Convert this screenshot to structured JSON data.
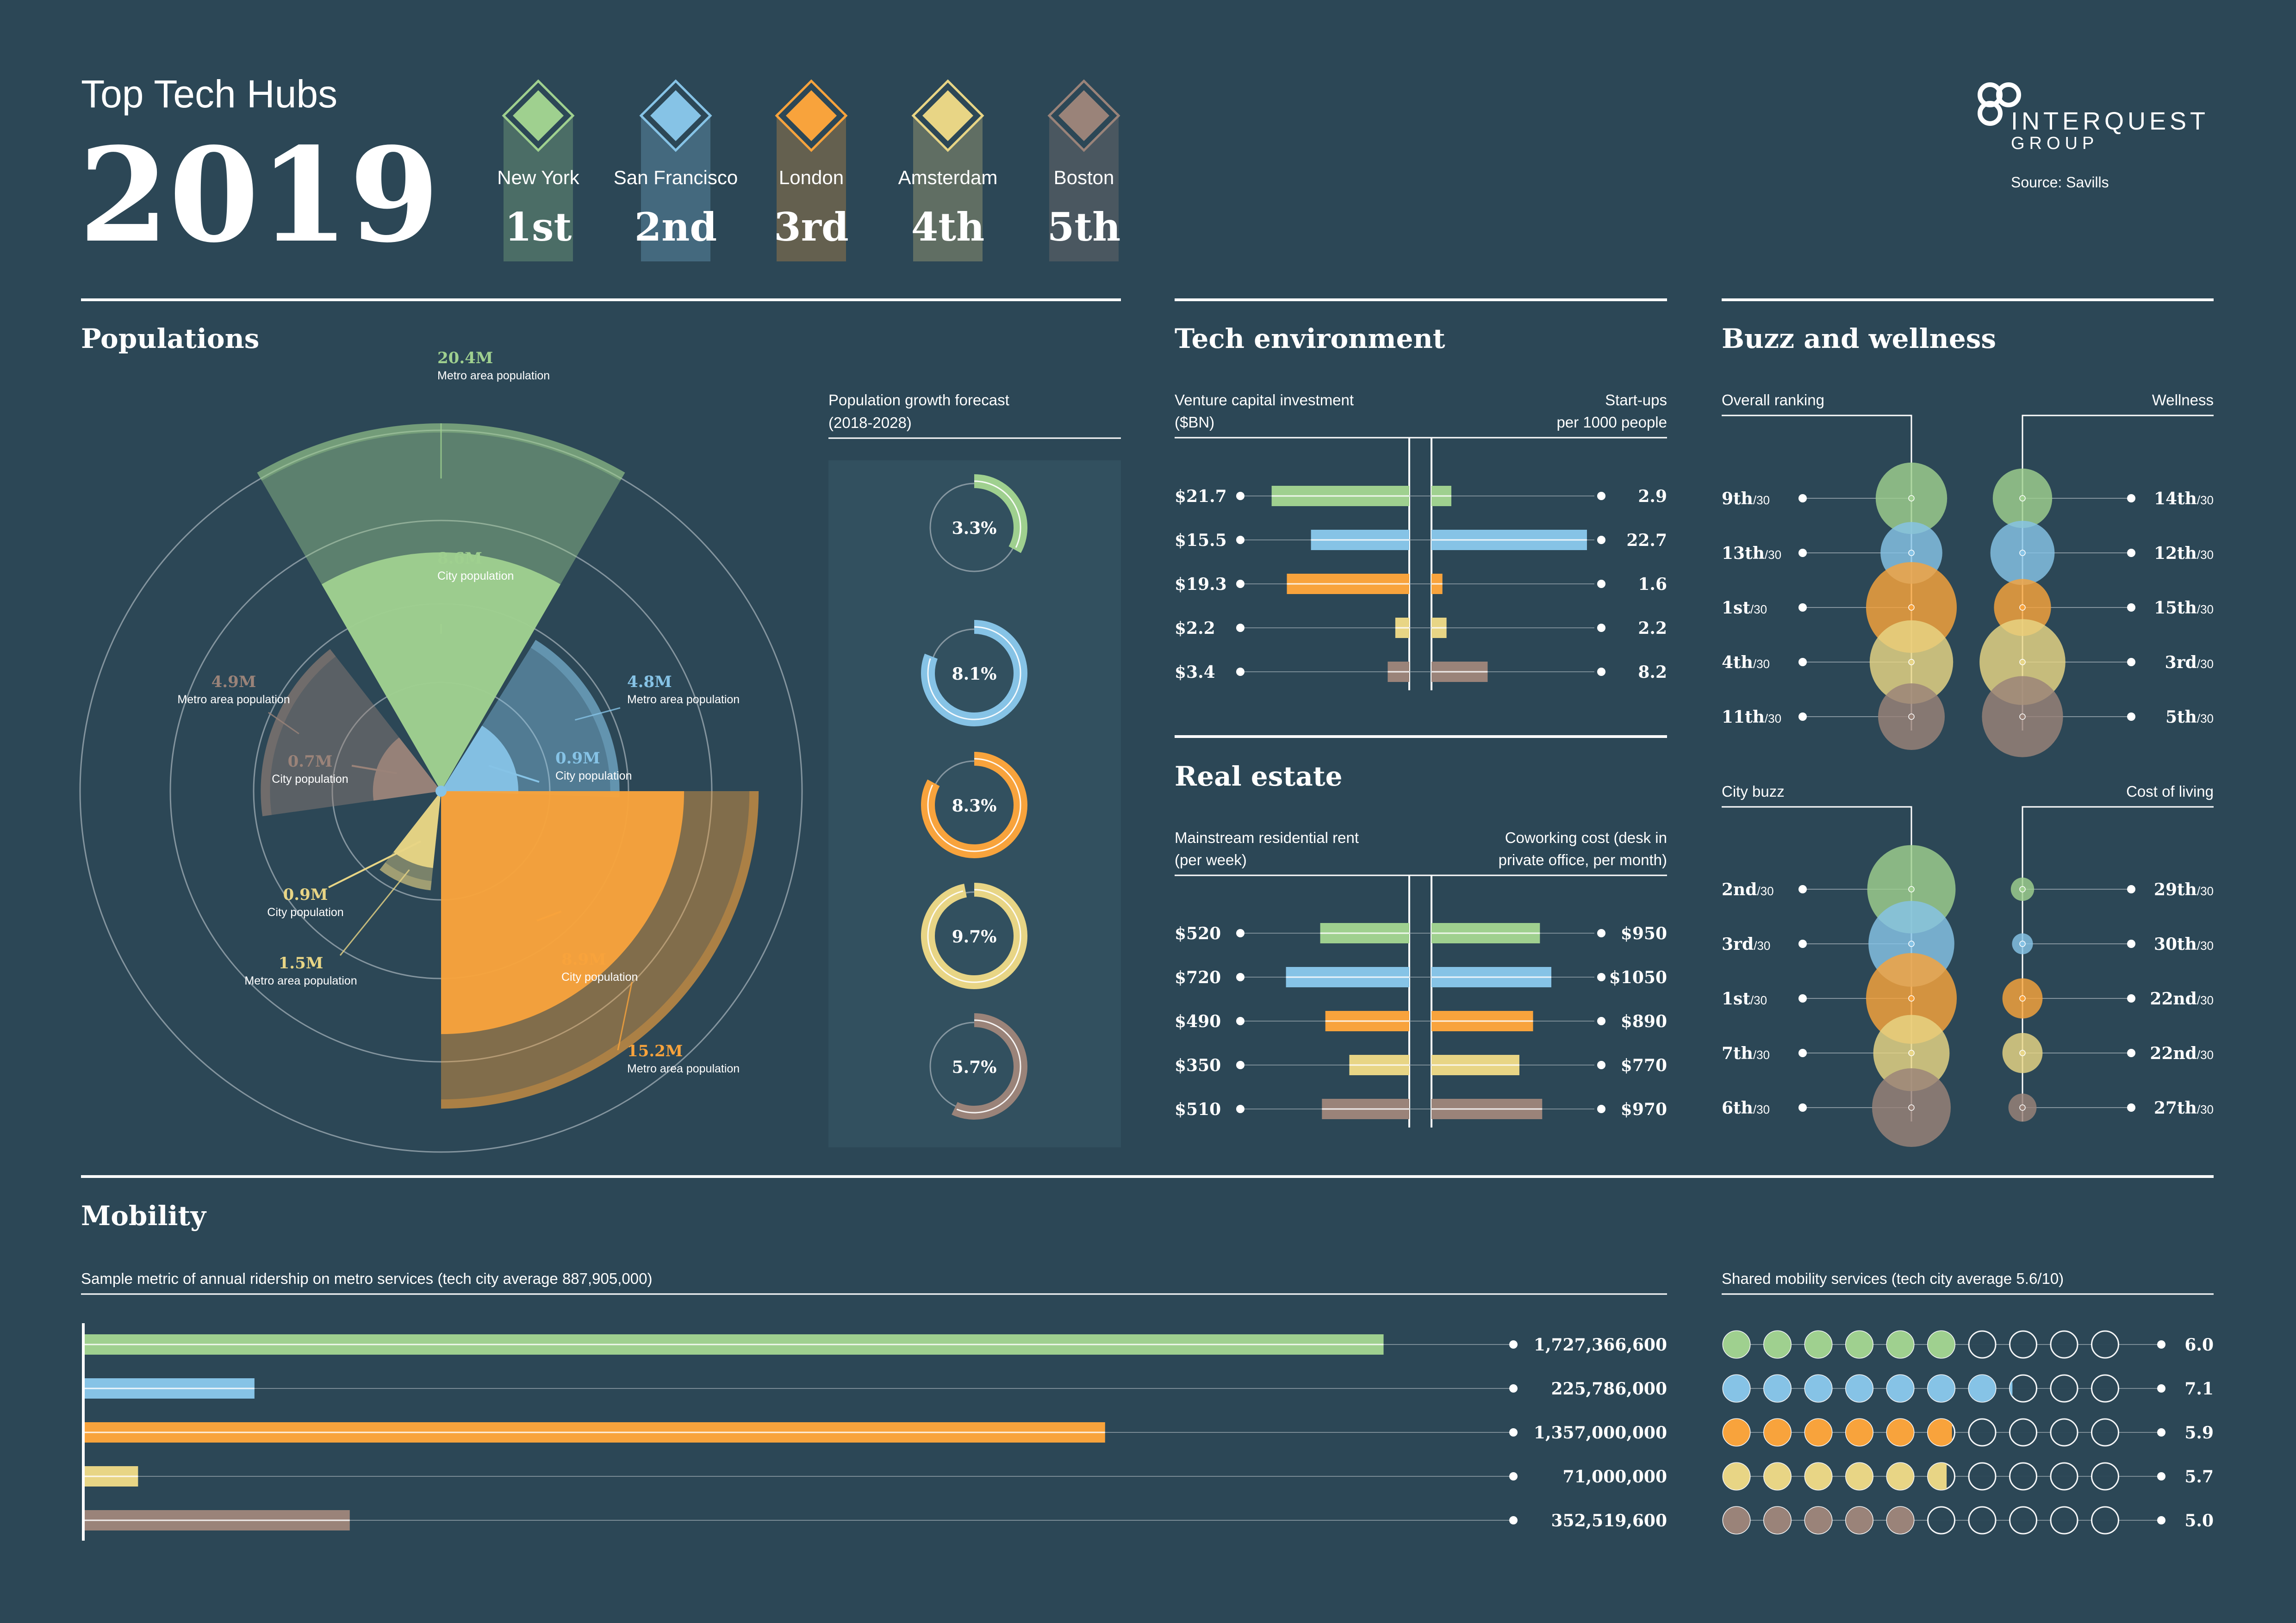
{
  "header": {
    "title": "Top Tech Hubs",
    "year": "2019",
    "source": "Source: Savills",
    "logo": {
      "main": "INTERQUEST",
      "sub": "GROUP"
    }
  },
  "cities": [
    {
      "name": "New York",
      "rank": "1st",
      "color": "#9fd08f"
    },
    {
      "name": "San Francisco",
      "rank": "2nd",
      "color": "#86c3e6"
    },
    {
      "name": "London",
      "rank": "3rd",
      "color": "#f8a33c"
    },
    {
      "name": "Amsterdam",
      "rank": "4th",
      "color": "#e8d585"
    },
    {
      "name": "Boston",
      "rank": "5th",
      "color": "#9a8379"
    }
  ],
  "sections": {
    "populations": "Populations",
    "tech": "Tech environment",
    "buzz": "Buzz and wellness",
    "realestate": "Real estate",
    "mobility": "Mobility"
  },
  "chart_data": [
    {
      "id": "populations",
      "type": "pie",
      "title": "Populations",
      "categories": [
        "New York",
        "San Francisco",
        "London",
        "Amsterdam",
        "Boston"
      ],
      "series": [
        {
          "name": "Metro area population",
          "labels": [
            "20.4M",
            "4.8M",
            "15.2M",
            "1.5M",
            "4.9M"
          ],
          "values": [
            20.4,
            4.8,
            15.2,
            1.5,
            4.9
          ]
        },
        {
          "name": "City population",
          "labels": [
            "8.6M",
            "0.9M",
            "8.9M",
            "0.9M",
            "0.7M"
          ],
          "values": [
            8.6,
            0.9,
            8.9,
            0.9,
            0.7
          ]
        }
      ]
    },
    {
      "id": "growth",
      "type": "pie",
      "title": "Population growth forecast",
      "subtitle": "(2018-2028)",
      "categories": [
        "New York",
        "San Francisco",
        "London",
        "Amsterdam",
        "Boston"
      ],
      "values": [
        3.3,
        8.1,
        8.3,
        9.7,
        5.7
      ],
      "labels": [
        "3.3%",
        "8.1%",
        "8.3%",
        "9.7%",
        "5.7%"
      ],
      "scale_max": 10
    },
    {
      "id": "vc_startups",
      "type": "bar",
      "left_title": "Venture capital investment",
      "left_subtitle": "($BN)",
      "right_title": "Start-ups",
      "right_subtitle": "per 1000 people",
      "categories": [
        "New York",
        "San Francisco",
        "London",
        "Amsterdam",
        "Boston"
      ],
      "left_values": [
        21.7,
        15.5,
        19.3,
        2.2,
        3.4
      ],
      "left_labels": [
        "$21.7",
        "$15.5",
        "$19.3",
        "$2.2",
        "$3.4"
      ],
      "right_values": [
        2.9,
        22.7,
        1.6,
        2.2,
        8.2
      ],
      "right_labels": [
        "2.9",
        "22.7",
        "1.6",
        "2.2",
        "8.2"
      ],
      "left_max": 27,
      "right_max": 25
    },
    {
      "id": "real_estate",
      "type": "bar",
      "left_title": "Mainstream residential rent",
      "left_subtitle": "(per week)",
      "right_title": "Coworking cost (desk in",
      "right_subtitle": "private office, per month)",
      "categories": [
        "New York",
        "San Francisco",
        "London",
        "Amsterdam",
        "Boston"
      ],
      "left_values": [
        520,
        720,
        490,
        350,
        510
      ],
      "left_labels": [
        "$520",
        "$720",
        "$490",
        "$350",
        "$510"
      ],
      "right_values": [
        950,
        1050,
        890,
        770,
        970
      ],
      "right_labels": [
        "$950",
        "$1050",
        "$890",
        "$770",
        "$970"
      ],
      "left_max": 1000,
      "right_max": 1500
    },
    {
      "id": "overall_ranking",
      "type": "scatter",
      "title": "Overall ranking",
      "categories": [
        "New York",
        "San Francisco",
        "London",
        "Amsterdam",
        "Boston"
      ],
      "ranks": [
        9,
        13,
        1,
        4,
        11
      ],
      "labels": [
        "9th",
        "13th",
        "1st",
        "4th",
        "11th"
      ],
      "out_of": "/30"
    },
    {
      "id": "wellness",
      "type": "scatter",
      "title": "Wellness",
      "categories": [
        "New York",
        "San Francisco",
        "London",
        "Amsterdam",
        "Boston"
      ],
      "ranks": [
        14,
        12,
        15,
        3,
        5
      ],
      "labels": [
        "14th",
        "12th",
        "15th",
        "3rd",
        "5th"
      ],
      "out_of": "/30"
    },
    {
      "id": "city_buzz",
      "type": "scatter",
      "title": "City buzz",
      "categories": [
        "New York",
        "San Francisco",
        "London",
        "Amsterdam",
        "Boston"
      ],
      "ranks": [
        2,
        3,
        1,
        7,
        6
      ],
      "labels": [
        "2nd",
        "3rd",
        "1st",
        "7th",
        "6th"
      ],
      "out_of": "/30"
    },
    {
      "id": "cost_of_living",
      "type": "scatter",
      "title": "Cost of living",
      "categories": [
        "New York",
        "San Francisco",
        "London",
        "Amsterdam",
        "Boston"
      ],
      "ranks": [
        29,
        30,
        22,
        22,
        27
      ],
      "labels": [
        "29th",
        "30th",
        "22nd",
        "22nd",
        "27th"
      ],
      "out_of": "/30"
    },
    {
      "id": "ridership",
      "type": "bar",
      "title": "Sample metric of annual ridership on metro services (tech city average 887,905,000)",
      "categories": [
        "New York",
        "San Francisco",
        "London",
        "Amsterdam",
        "Boston"
      ],
      "values": [
        1727366600,
        225786000,
        1357000000,
        71000000,
        352519600
      ],
      "labels": [
        "1,727,366,600",
        "225,786,000",
        "1,357,000,000",
        "71,000,000",
        "352,519,600"
      ],
      "xlim": [
        0,
        1900000000
      ]
    },
    {
      "id": "shared_mobility",
      "type": "bar",
      "title": "Shared mobility services (tech city average 5.6/10)",
      "categories": [
        "New York",
        "San Francisco",
        "London",
        "Amsterdam",
        "Boston"
      ],
      "values": [
        6.0,
        7.1,
        5.9,
        5.7,
        5.0
      ],
      "labels": [
        "6.0",
        "7.1",
        "5.9",
        "5.7",
        "5.0"
      ],
      "scale_max": 10
    }
  ]
}
